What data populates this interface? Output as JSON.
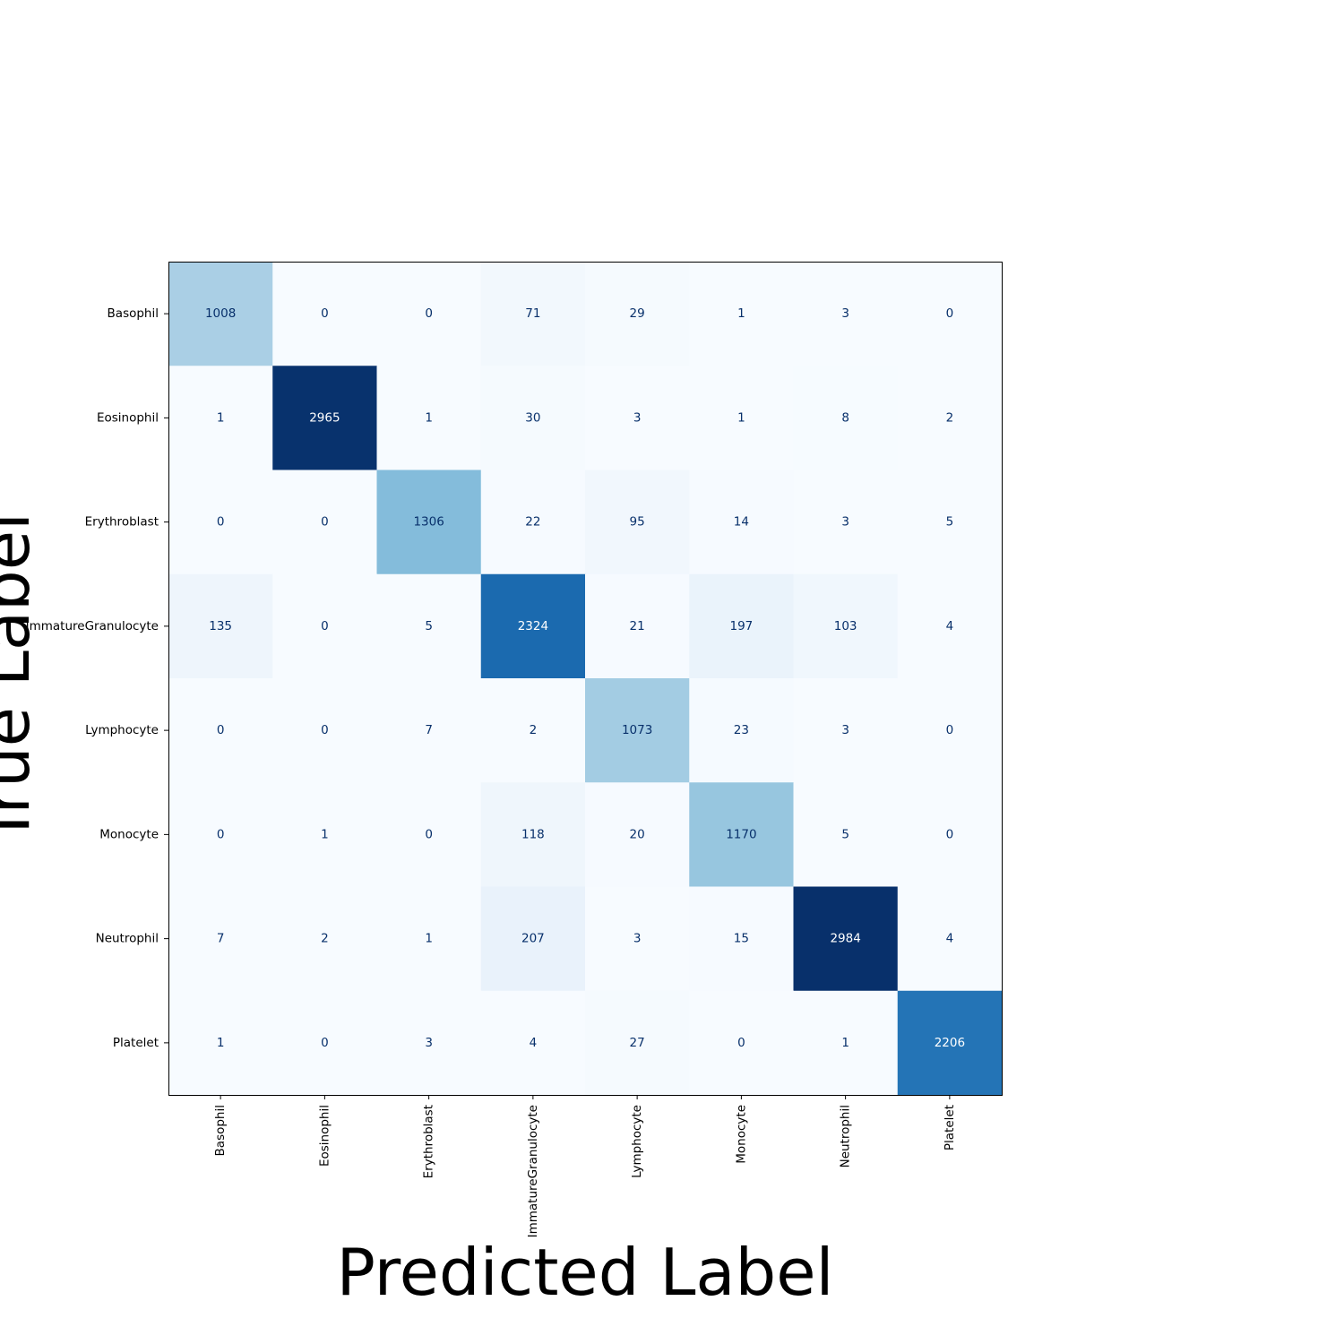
{
  "chart_data": {
    "type": "heatmap",
    "title": "",
    "xlabel": "Predicted Label",
    "ylabel": "True Label",
    "colormap": "Blues",
    "x_categories": [
      "Basophil",
      "Eosinophil",
      "Erythroblast",
      "ImmatureGranulocyte",
      "Lymphocyte",
      "Monocyte",
      "Neutrophil",
      "Platelet"
    ],
    "y_categories": [
      "Basophil",
      "Eosinophil",
      "Erythroblast",
      "ImmatureGranulocyte",
      "Lymphocyte",
      "Monocyte",
      "Neutrophil",
      "Platelet"
    ],
    "values": [
      [
        1008,
        0,
        0,
        71,
        29,
        1,
        3,
        0
      ],
      [
        1,
        2965,
        1,
        30,
        3,
        1,
        8,
        2
      ],
      [
        0,
        0,
        1306,
        22,
        95,
        14,
        3,
        5
      ],
      [
        135,
        0,
        5,
        2324,
        21,
        197,
        103,
        4
      ],
      [
        0,
        0,
        7,
        2,
        1073,
        23,
        3,
        0
      ],
      [
        0,
        1,
        0,
        118,
        20,
        1170,
        5,
        0
      ],
      [
        7,
        2,
        1,
        207,
        3,
        15,
        2984,
        4
      ],
      [
        1,
        0,
        3,
        4,
        27,
        0,
        1,
        2206
      ]
    ],
    "vmin": 0,
    "vmax": 2984,
    "colorbar": false,
    "grid": false
  }
}
